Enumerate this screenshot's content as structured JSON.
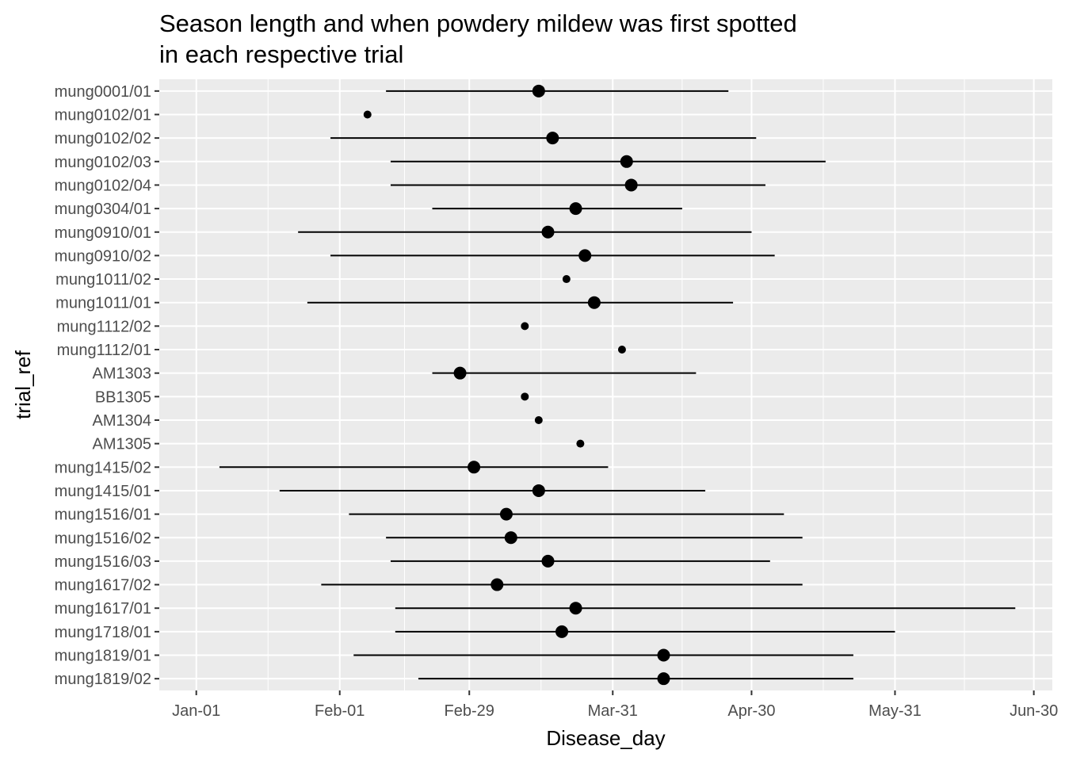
{
  "chart_data": {
    "type": "scatter",
    "title_lines": [
      "Season length and when powdery mildew was first spotted",
      "in each respective trial"
    ],
    "xlabel": "Disease_day",
    "ylabel": "trial_ref",
    "x_tick_labels": [
      "Jan-01",
      "Feb-01",
      "Feb-29",
      "Mar-31",
      "Apr-30",
      "May-31",
      "Jun-30"
    ],
    "x_ticks": [
      "2020-01-01",
      "2020-02-01",
      "2020-02-29",
      "2020-03-31",
      "2020-04-30",
      "2020-05-31",
      "2020-06-30"
    ],
    "xlim": [
      "2019-12-24",
      "2020-07-04"
    ],
    "grid": true,
    "legend": "none",
    "colors": {
      "panel": "#EBEBEB",
      "grid": "#FFFFFF",
      "mark": "#000000",
      "axis_text": "#4D4D4D"
    },
    "trials": [
      {
        "name": "mung0001/01",
        "start": "2020-02-11",
        "end": "2020-04-25",
        "first_spotted": "2020-03-15",
        "marker": "large"
      },
      {
        "name": "mung0102/01",
        "first_spotted": "2020-02-07",
        "marker": "small"
      },
      {
        "name": "mung0102/02",
        "start": "2020-01-30",
        "end": "2020-05-01",
        "first_spotted": "2020-03-18",
        "marker": "large"
      },
      {
        "name": "mung0102/03",
        "start": "2020-02-12",
        "end": "2020-05-16",
        "first_spotted": "2020-04-03",
        "marker": "large"
      },
      {
        "name": "mung0102/04",
        "start": "2020-02-12",
        "end": "2020-05-03",
        "first_spotted": "2020-04-04",
        "marker": "large"
      },
      {
        "name": "mung0304/01",
        "start": "2020-02-21",
        "end": "2020-04-15",
        "first_spotted": "2020-03-23",
        "marker": "large"
      },
      {
        "name": "mung0910/01",
        "start": "2020-01-23",
        "end": "2020-04-30",
        "first_spotted": "2020-03-17",
        "marker": "large"
      },
      {
        "name": "mung0910/02",
        "start": "2020-01-30",
        "end": "2020-05-05",
        "first_spotted": "2020-03-25",
        "marker": "large"
      },
      {
        "name": "mung1011/02",
        "first_spotted": "2020-03-21",
        "marker": "small"
      },
      {
        "name": "mung1011/01",
        "start": "2020-01-25",
        "end": "2020-04-26",
        "first_spotted": "2020-03-27",
        "marker": "large"
      },
      {
        "name": "mung1112/02",
        "first_spotted": "2020-03-12",
        "marker": "small"
      },
      {
        "name": "mung1112/01",
        "first_spotted": "2020-04-02",
        "marker": "small"
      },
      {
        "name": "AM1303",
        "start": "2020-02-21",
        "end": "2020-04-18",
        "first_spotted": "2020-02-27",
        "marker": "large"
      },
      {
        "name": "BB1305",
        "first_spotted": "2020-03-12",
        "marker": "small"
      },
      {
        "name": "AM1304",
        "first_spotted": "2020-03-15",
        "marker": "small"
      },
      {
        "name": "AM1305",
        "first_spotted": "2020-03-24",
        "marker": "small"
      },
      {
        "name": "mung1415/02",
        "start": "2020-01-06",
        "end": "2020-03-30",
        "first_spotted": "2020-03-01",
        "marker": "large"
      },
      {
        "name": "mung1415/01",
        "start": "2020-01-19",
        "end": "2020-04-20",
        "first_spotted": "2020-03-15",
        "marker": "large"
      },
      {
        "name": "mung1516/01",
        "start": "2020-02-03",
        "end": "2020-05-07",
        "first_spotted": "2020-03-08",
        "marker": "large"
      },
      {
        "name": "mung1516/02",
        "start": "2020-02-11",
        "end": "2020-05-11",
        "first_spotted": "2020-03-09",
        "marker": "large"
      },
      {
        "name": "mung1516/03",
        "start": "2020-02-12",
        "end": "2020-05-04",
        "first_spotted": "2020-03-17",
        "marker": "large"
      },
      {
        "name": "mung1617/02",
        "start": "2020-01-28",
        "end": "2020-05-11",
        "first_spotted": "2020-03-06",
        "marker": "large"
      },
      {
        "name": "mung1617/01",
        "start": "2020-02-13",
        "end": "2020-06-26",
        "first_spotted": "2020-03-23",
        "marker": "large"
      },
      {
        "name": "mung1718/01",
        "start": "2020-02-13",
        "end": "2020-05-31",
        "first_spotted": "2020-03-20",
        "marker": "large"
      },
      {
        "name": "mung1819/01",
        "start": "2020-02-04",
        "end": "2020-05-22",
        "first_spotted": "2020-04-11",
        "marker": "large"
      },
      {
        "name": "mung1819/02",
        "start": "2020-02-18",
        "end": "2020-05-22",
        "first_spotted": "2020-04-11",
        "marker": "large"
      }
    ]
  }
}
